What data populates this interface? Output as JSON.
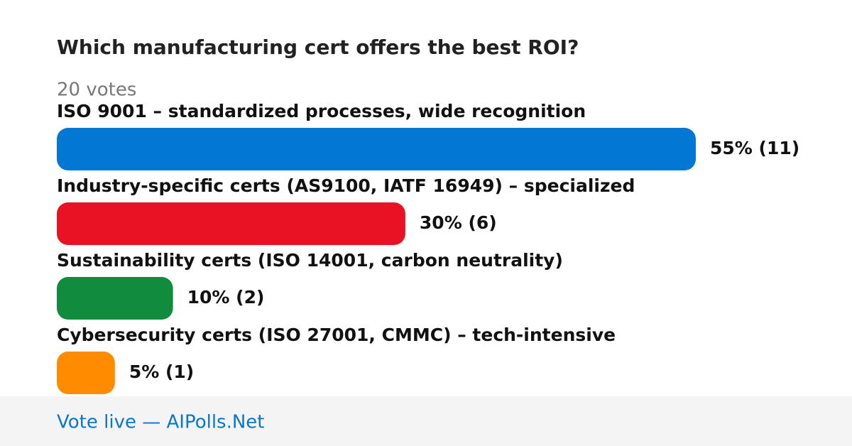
{
  "chart_data": {
    "type": "bar",
    "orientation": "horizontal",
    "title": "Which manufacturing cert offers the best ROI?",
    "subtitle": "20 votes",
    "categories": [
      "ISO 9001 – standardized processes, wide recognition",
      "Industry-specific certs (AS9100, IATF 16949) – specialized",
      "Sustainability certs (ISO 14001, carbon neutrality)",
      "Cybersecurity certs (ISO 27001, CMMC) – tech-intensive"
    ],
    "values": [
      55,
      30,
      10,
      5
    ],
    "value_labels": [
      "55% (11)",
      "30% (6)",
      "10% (2)",
      "5% (1)"
    ],
    "colors": [
      "#0277d4",
      "#e81224",
      "#118c3e",
      "#ff8c00"
    ],
    "footer": "Vote live — AIPolls.Net"
  }
}
